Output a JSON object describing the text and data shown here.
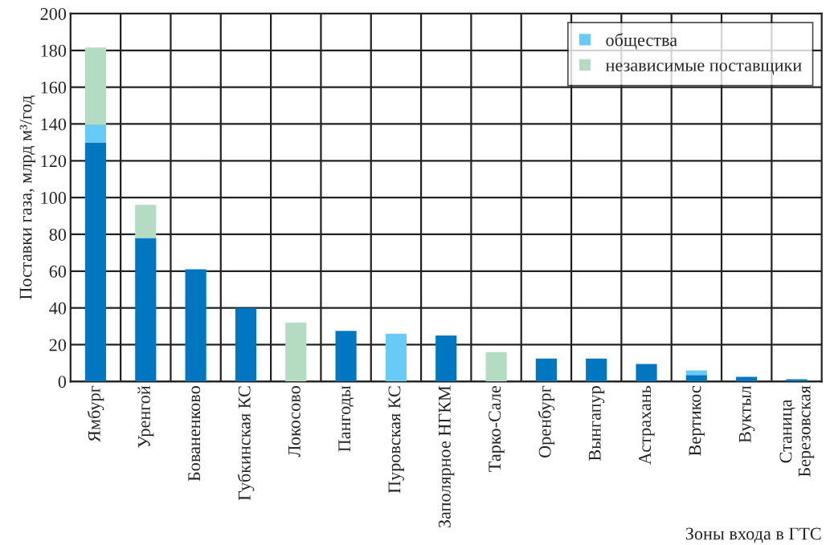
{
  "chart_data": {
    "type": "bar",
    "stacked": true,
    "ylabel": "Поставки газа, млрд м³/год",
    "xlabel": "Зоны входа в ГТС",
    "categories": [
      "Ямбург",
      "Уренгой",
      "Бованенково",
      "Губкинская КС",
      "Локосово",
      "Пангоды",
      "Пуровская КС",
      "Заполярное НГКМ",
      "Тарко-Сале",
      "Оренбург",
      "Вынгапур",
      "Астрахань",
      "Вертикос",
      "Вуктыл",
      "Станица\nБерезовская"
    ],
    "series": [
      {
        "color": "#0077c0",
        "values": [
          130,
          78,
          61,
          40,
          0,
          27.5,
          0,
          25,
          0,
          12.5,
          12.5,
          9.5,
          3.5,
          2.5,
          1.2
        ]
      },
      {
        "name": "общества",
        "color": "#66ccf5",
        "values": [
          9.5,
          0,
          0,
          0,
          0,
          0,
          26,
          0,
          0,
          0,
          0,
          0,
          2.5,
          0,
          0
        ]
      },
      {
        "name": "независимые поставщики",
        "color": "#b3dcc3",
        "values": [
          42,
          18,
          0,
          0,
          32,
          0,
          0,
          0,
          16,
          0,
          0,
          0,
          0,
          0,
          0
        ]
      }
    ],
    "ylim": [
      0,
      200
    ],
    "yticks": [
      0,
      20,
      40,
      60,
      80,
      100,
      120,
      140,
      160,
      180,
      200
    ],
    "grid": true,
    "legend": "top right"
  }
}
